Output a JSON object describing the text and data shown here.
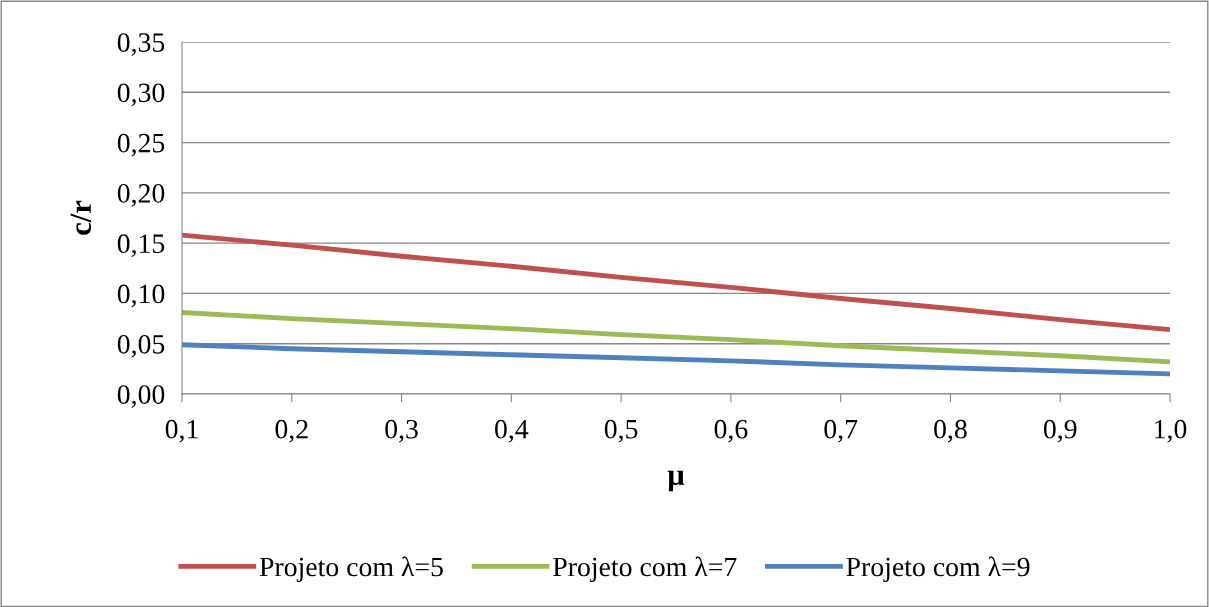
{
  "chart_data": {
    "type": "line",
    "xlabel": "μ",
    "ylabel": "c/r",
    "x": [
      0.1,
      0.2,
      0.3,
      0.4,
      0.5,
      0.6,
      0.7,
      0.8,
      0.9,
      1.0
    ],
    "series": [
      {
        "name": "Projeto com λ=5",
        "color": "#c0504d",
        "values": [
          0.158,
          0.148,
          0.137,
          0.127,
          0.116,
          0.106,
          0.095,
          0.085,
          0.074,
          0.064
        ]
      },
      {
        "name": "Projeto com λ=7",
        "color": "#9bbb59",
        "values": [
          0.081,
          0.075,
          0.07,
          0.065,
          0.059,
          0.054,
          0.048,
          0.043,
          0.038,
          0.032
        ]
      },
      {
        "name": "Projeto com λ=9",
        "color": "#4f81bd",
        "values": [
          0.049,
          0.045,
          0.042,
          0.039,
          0.036,
          0.033,
          0.029,
          0.026,
          0.023,
          0.02
        ]
      }
    ],
    "xlim": [
      0.1,
      1.0
    ],
    "xticks": [
      {
        "value": 0.1,
        "label": "0,1"
      },
      {
        "value": 0.2,
        "label": "0,2"
      },
      {
        "value": 0.3,
        "label": "0,3"
      },
      {
        "value": 0.4,
        "label": "0,4"
      },
      {
        "value": 0.5,
        "label": "0,5"
      },
      {
        "value": 0.6,
        "label": "0,6"
      },
      {
        "value": 0.7,
        "label": "0,7"
      },
      {
        "value": 0.8,
        "label": "0,8"
      },
      {
        "value": 0.9,
        "label": "0,9"
      },
      {
        "value": 1.0,
        "label": "1,0"
      }
    ],
    "ylim": [
      0,
      0.35
    ],
    "yticks": [
      {
        "value": 0,
        "label": "0,00"
      },
      {
        "value": 0.05,
        "label": "0,05"
      },
      {
        "value": 0.1,
        "label": "0,10"
      },
      {
        "value": 0.15,
        "label": "0,15"
      },
      {
        "value": 0.2,
        "label": "0,20"
      },
      {
        "value": 0.25,
        "label": "0,25"
      },
      {
        "value": 0.3,
        "label": "0,30"
      },
      {
        "value": 0.35,
        "label": "0,35"
      }
    ],
    "grid": "y",
    "legend": "bottom",
    "marker": "none",
    "line_style": "solid"
  }
}
